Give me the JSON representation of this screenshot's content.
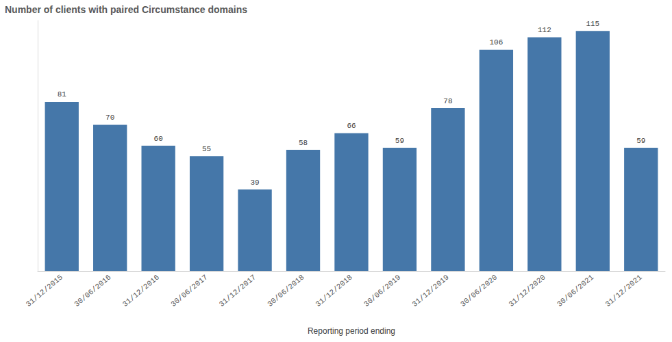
{
  "chart_data": {
    "type": "bar",
    "title": "Number of clients with paired Circumstance domains",
    "x_label": "Reporting period ending",
    "categories": [
      "31/12/2015",
      "30/06/2016",
      "31/12/2016",
      "30/06/2017",
      "31/12/2017",
      "30/06/2018",
      "31/12/2018",
      "30/06/2019",
      "31/12/2019",
      "30/06/2020",
      "31/12/2020",
      "30/06/2021",
      "31/12/2021"
    ],
    "values": [
      81,
      70,
      60,
      55,
      39,
      58,
      66,
      59,
      78,
      106,
      112,
      115,
      59
    ],
    "color": "#4577a9",
    "ylim": [
      0,
      120
    ],
    "grid": false,
    "data_labels": true,
    "tick_labels": "x"
  }
}
